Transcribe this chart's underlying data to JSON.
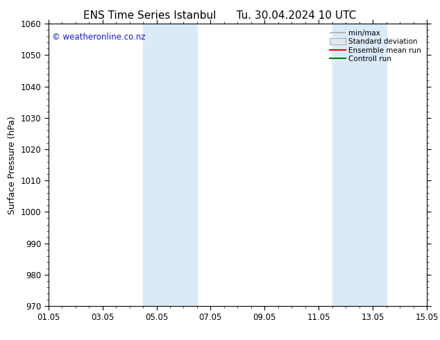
{
  "title_left": "ENS Time Series Istanbul",
  "title_right": "Tu. 30.04.2024 10 UTC",
  "ylabel": "Surface Pressure (hPa)",
  "ylim": [
    970,
    1060
  ],
  "yticks": [
    970,
    980,
    990,
    1000,
    1010,
    1020,
    1030,
    1040,
    1050,
    1060
  ],
  "xtick_labels": [
    "01.05",
    "03.05",
    "05.05",
    "07.05",
    "09.05",
    "11.05",
    "13.05",
    "15.05"
  ],
  "xtick_positions": [
    0,
    2,
    4,
    6,
    8,
    10,
    12,
    14
  ],
  "xlim": [
    0,
    14
  ],
  "shaded_bands": [
    {
      "x_start": 3.5,
      "x_end": 5.5,
      "color": "#daeaf8"
    },
    {
      "x_start": 10.5,
      "x_end": 12.5,
      "color": "#daeaf8"
    }
  ],
  "watermark_text": "© weatheronline.co.nz",
  "watermark_color": "#1515dd",
  "legend_labels": [
    "min/max",
    "Standard deviation",
    "Ensemble mean run",
    "Controll run"
  ],
  "legend_line_colors": [
    "#aaaaaa",
    "#cccccc",
    "#ff0000",
    "#008000"
  ],
  "bg_color": "#ffffff",
  "plot_bg_color": "#ffffff",
  "title_fontsize": 11,
  "label_fontsize": 9,
  "tick_fontsize": 8.5,
  "legend_fontsize": 7.5,
  "watermark_fontsize": 8.5
}
